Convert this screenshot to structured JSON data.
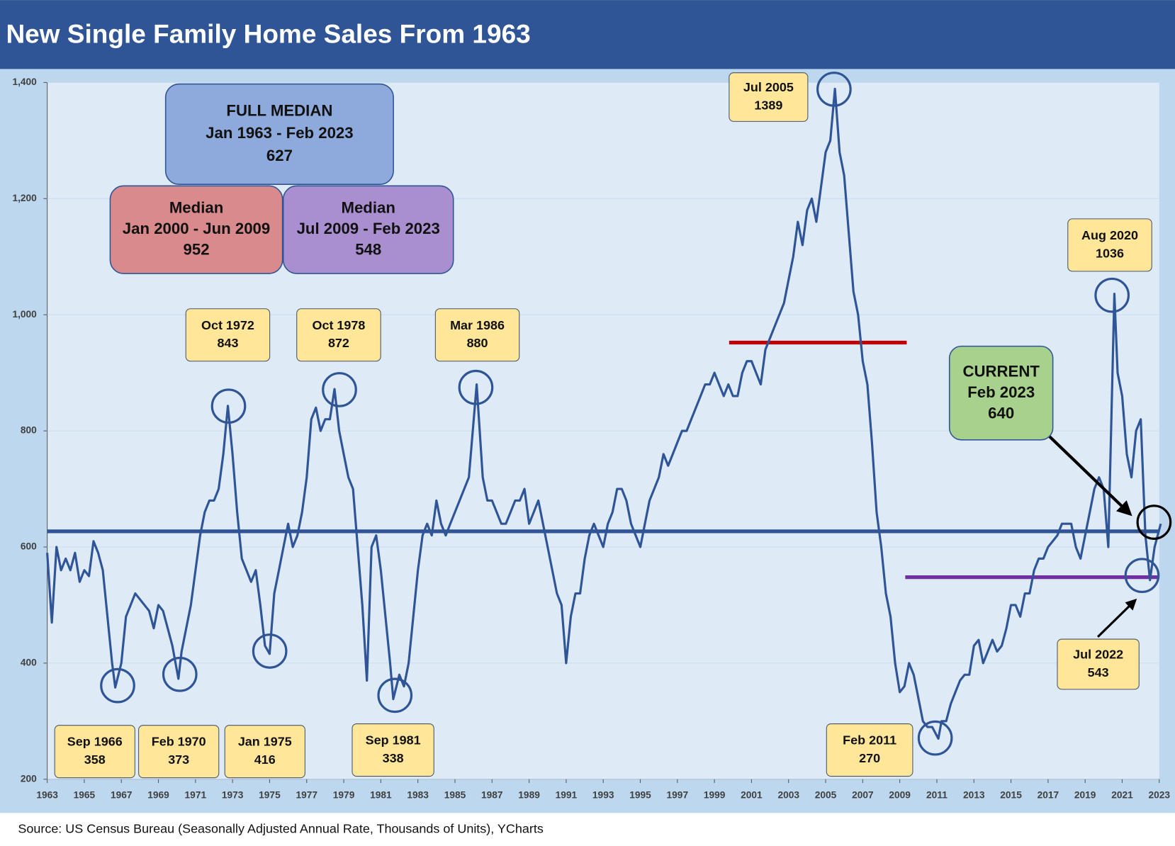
{
  "chart_data": {
    "type": "line",
    "title": "New Single Family Home Sales From 1963",
    "source": "Source: US Census Bureau (Seasonally Adjusted Annual Rate, Thousands of Units), YCharts",
    "color": "#2f5597",
    "x": [
      1963,
      1963.25,
      1963.5,
      1963.75,
      1964,
      1964.25,
      1964.5,
      1964.75,
      1965,
      1965.25,
      1965.5,
      1965.75,
      1966,
      1966.25,
      1966.5,
      1966.67,
      1967,
      1967.25,
      1967.5,
      1967.75,
      1968,
      1968.25,
      1968.5,
      1968.75,
      1969,
      1969.25,
      1969.5,
      1969.75,
      1970.08,
      1970.25,
      1970.5,
      1970.75,
      1971,
      1971.25,
      1971.5,
      1971.75,
      1972,
      1972.25,
      1972.5,
      1972.75,
      1973,
      1973.25,
      1973.5,
      1973.75,
      1974,
      1974.25,
      1974.5,
      1974.75,
      1975,
      1975.25,
      1975.5,
      1975.75,
      1976,
      1976.25,
      1976.5,
      1976.75,
      1977,
      1977.25,
      1977.5,
      1977.75,
      1978,
      1978.25,
      1978.5,
      1978.75,
      1979,
      1979.25,
      1979.5,
      1979.75,
      1980,
      1980.25,
      1980.5,
      1980.75,
      1981,
      1981.25,
      1981.5,
      1981.67,
      1982,
      1982.25,
      1982.5,
      1982.75,
      1983,
      1983.25,
      1983.5,
      1983.75,
      1984,
      1984.25,
      1984.5,
      1984.75,
      1985,
      1985.25,
      1985.5,
      1985.75,
      1986.17,
      1986.5,
      1986.75,
      1987,
      1987.25,
      1987.5,
      1987.75,
      1988,
      1988.25,
      1988.5,
      1988.75,
      1989,
      1989.25,
      1989.5,
      1989.75,
      1990,
      1990.25,
      1990.5,
      1990.75,
      1991,
      1991.25,
      1991.5,
      1991.75,
      1992,
      1992.25,
      1992.5,
      1992.75,
      1993,
      1993.25,
      1993.5,
      1993.75,
      1994,
      1994.25,
      1994.5,
      1994.75,
      1995,
      1995.25,
      1995.5,
      1995.75,
      1996,
      1996.25,
      1996.5,
      1996.75,
      1997,
      1997.25,
      1997.5,
      1997.75,
      1998,
      1998.25,
      1998.5,
      1998.75,
      1999,
      1999.25,
      1999.5,
      1999.75,
      2000,
      2000.25,
      2000.5,
      2000.75,
      2001,
      2001.25,
      2001.5,
      2001.75,
      2002,
      2002.25,
      2002.5,
      2002.75,
      2003,
      2003.25,
      2003.5,
      2003.75,
      2004,
      2004.25,
      2004.5,
      2004.75,
      2005,
      2005.25,
      2005.5,
      2005.75,
      2006,
      2006.25,
      2006.5,
      2006.75,
      2007,
      2007.25,
      2007.5,
      2007.75,
      2008,
      2008.25,
      2008.5,
      2008.75,
      2009,
      2009.25,
      2009.5,
      2009.75,
      2010,
      2010.25,
      2010.5,
      2010.75,
      2011.08,
      2011.25,
      2011.5,
      2011.75,
      2012,
      2012.25,
      2012.5,
      2012.75,
      2013,
      2013.25,
      2013.5,
      2013.75,
      2014,
      2014.25,
      2014.5,
      2014.75,
      2015,
      2015.25,
      2015.5,
      2015.75,
      2016,
      2016.25,
      2016.5,
      2016.75,
      2017,
      2017.25,
      2017.5,
      2017.75,
      2018,
      2018.25,
      2018.5,
      2018.75,
      2019,
      2019.25,
      2019.5,
      2019.75,
      2020,
      2020.25,
      2020.58,
      2020.75,
      2021,
      2021.25,
      2021.5,
      2021.75,
      2022,
      2022.25,
      2022.5,
      2022.75,
      2023.08
    ],
    "values": [
      590,
      470,
      600,
      560,
      580,
      560,
      590,
      540,
      560,
      550,
      610,
      590,
      560,
      480,
      400,
      358,
      400,
      480,
      500,
      520,
      510,
      500,
      490,
      460,
      500,
      490,
      460,
      430,
      373,
      420,
      460,
      500,
      560,
      620,
      660,
      680,
      680,
      700,
      760,
      843,
      760,
      660,
      580,
      560,
      540,
      560,
      500,
      430,
      416,
      520,
      560,
      600,
      640,
      600,
      620,
      660,
      720,
      820,
      840,
      800,
      820,
      820,
      872,
      800,
      760,
      720,
      700,
      600,
      500,
      370,
      600,
      620,
      560,
      480,
      400,
      338,
      380,
      360,
      400,
      480,
      560,
      620,
      640,
      620,
      680,
      640,
      620,
      640,
      660,
      680,
      700,
      720,
      880,
      720,
      680,
      680,
      660,
      640,
      640,
      660,
      680,
      680,
      700,
      640,
      660,
      680,
      640,
      600,
      560,
      520,
      500,
      400,
      480,
      520,
      520,
      580,
      620,
      640,
      620,
      600,
      640,
      660,
      700,
      700,
      680,
      640,
      620,
      600,
      640,
      680,
      700,
      720,
      760,
      740,
      760,
      780,
      800,
      800,
      820,
      840,
      860,
      880,
      880,
      900,
      880,
      860,
      880,
      860,
      860,
      900,
      920,
      920,
      900,
      880,
      940,
      960,
      980,
      1000,
      1020,
      1060,
      1100,
      1160,
      1120,
      1180,
      1200,
      1160,
      1220,
      1280,
      1300,
      1389,
      1280,
      1240,
      1140,
      1040,
      1000,
      920,
      880,
      780,
      660,
      600,
      520,
      480,
      400,
      350,
      360,
      400,
      380,
      340,
      300,
      290,
      290,
      270,
      300,
      300,
      330,
      350,
      370,
      380,
      380,
      430,
      440,
      400,
      420,
      440,
      420,
      430,
      460,
      500,
      500,
      480,
      520,
      520,
      560,
      580,
      580,
      600,
      610,
      620,
      640,
      640,
      640,
      600,
      580,
      620,
      660,
      700,
      720,
      700,
      600,
      1036,
      900,
      860,
      760,
      720,
      800,
      820,
      620,
      543,
      600,
      640
    ],
    "xlim": [
      1963,
      2023
    ],
    "xticks": [
      1963,
      1965,
      1967,
      1969,
      1971,
      1973,
      1975,
      1977,
      1979,
      1981,
      1983,
      1985,
      1987,
      1989,
      1991,
      1993,
      1995,
      1997,
      1999,
      2001,
      2003,
      2005,
      2007,
      2009,
      2011,
      2013,
      2015,
      2017,
      2019,
      2021,
      2023
    ],
    "ylim": [
      200,
      1400
    ],
    "yticks": [
      200,
      400,
      600,
      800,
      {
        "value": 1000,
        "label": "1,000"
      },
      {
        "value": 1200,
        "label": "1,200"
      },
      {
        "value": 1400,
        "label": "1,400"
      }
    ],
    "medians": [
      {
        "title": "FULL MEDIAN",
        "period": "Jan 1963 - Feb 2023",
        "value": 627,
        "color": "#2f5597",
        "box": "#8ea9db"
      },
      {
        "title": "Median",
        "period": "Jan 2000 - Jun 2009",
        "value": 952,
        "color": "#c00000",
        "box": "#d98a8c"
      },
      {
        "title": "Median",
        "period": "Jul 2009 - Feb 2023",
        "value": 548,
        "color": "#7030a0",
        "box": "#a98fd0"
      }
    ],
    "annotations": [
      {
        "date": "Sep 1966",
        "value": 358
      },
      {
        "date": "Feb 1970",
        "value": 373
      },
      {
        "date": "Jan 1975",
        "value": 416
      },
      {
        "date": "Sep 1981",
        "value": 338
      },
      {
        "date": "Oct 1972",
        "value": 843
      },
      {
        "date": "Oct 1978",
        "value": 872
      },
      {
        "date": "Mar 1986",
        "value": 880
      },
      {
        "date": "Jul 2005",
        "value": 1389
      },
      {
        "date": "Feb 2011",
        "value": 270
      },
      {
        "date": "Aug 2020",
        "value": 1036
      },
      {
        "date": "Jul 2022",
        "value": 543
      }
    ],
    "current": {
      "title": "CURRENT",
      "date": "Feb 2023",
      "value": 640
    }
  }
}
